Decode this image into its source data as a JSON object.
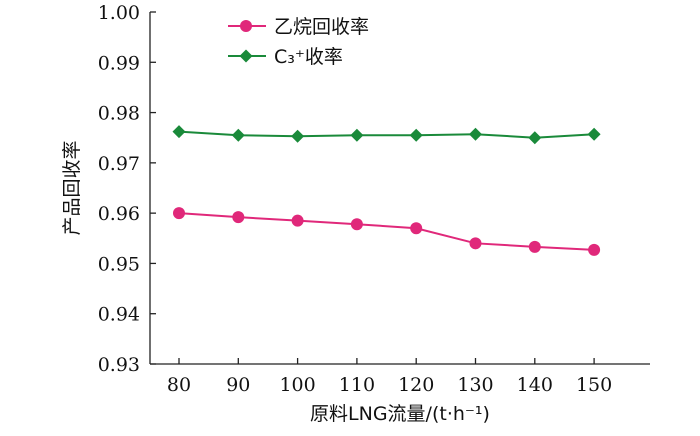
{
  "chart_data": {
    "type": "line",
    "x": [
      80,
      90,
      100,
      110,
      120,
      130,
      140,
      150
    ],
    "xticks": [
      "80",
      "90",
      "100",
      "110",
      "120",
      "130",
      "140",
      "150"
    ],
    "yticks": [
      "0.93",
      "0.94",
      "0.95",
      "0.96",
      "0.97",
      "0.98",
      "0.99",
      "1.00"
    ],
    "ylim": [
      0.93,
      1.0
    ],
    "xlabel": "原料LNG流量/(t·h⁻¹)",
    "ylabel": "产品回收率",
    "legend_position": "top-center",
    "grid": false,
    "series": [
      {
        "name": "乙烷回收率",
        "color": "#e0287a",
        "marker": "circle",
        "values": [
          0.96,
          0.9592,
          0.9585,
          0.9578,
          0.957,
          0.954,
          0.9533,
          0.9527
        ]
      },
      {
        "name": "C₃⁺收率",
        "color": "#1a8a3a",
        "marker": "diamond",
        "values": [
          0.9762,
          0.9755,
          0.9753,
          0.9755,
          0.9755,
          0.9757,
          0.975,
          0.9757
        ]
      }
    ]
  }
}
